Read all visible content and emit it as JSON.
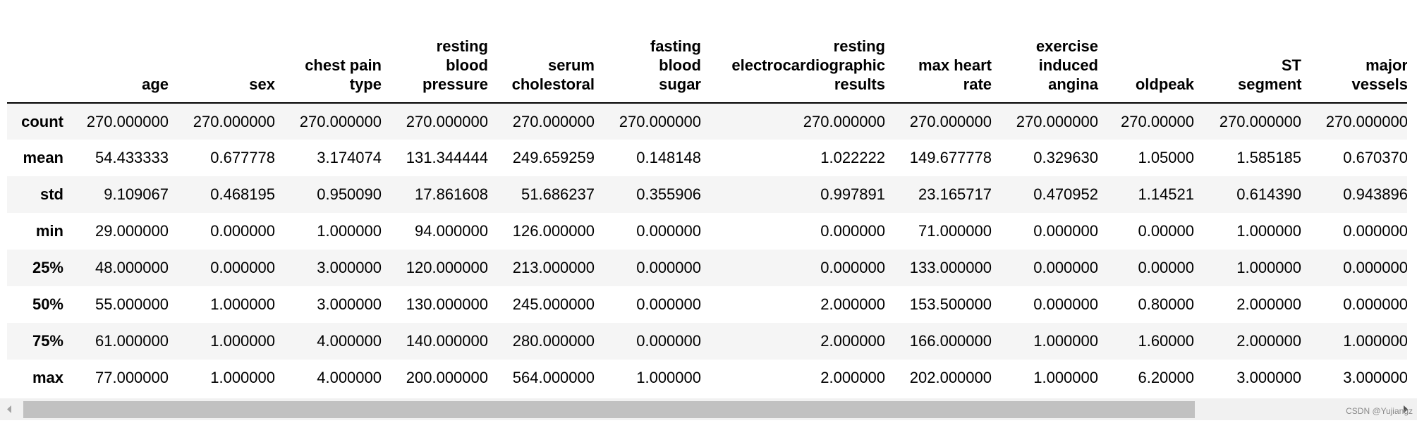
{
  "table": {
    "columns": [
      "age",
      "sex",
      "chest pain type",
      "resting blood pressure",
      "serum cholestoral",
      "fasting blood sugar",
      "resting electrocardiographic results",
      "max heart rate",
      "exercise induced angina",
      "oldpeak",
      "ST segment",
      "major vessels"
    ],
    "rows": [
      {
        "label": "count",
        "values": [
          "270.000000",
          "270.000000",
          "270.000000",
          "270.000000",
          "270.000000",
          "270.000000",
          "270.000000",
          "270.000000",
          "270.000000",
          "270.00000",
          "270.000000",
          "270.000000"
        ]
      },
      {
        "label": "mean",
        "values": [
          "54.433333",
          "0.677778",
          "3.174074",
          "131.344444",
          "249.659259",
          "0.148148",
          "1.022222",
          "149.677778",
          "0.329630",
          "1.05000",
          "1.585185",
          "0.670370"
        ]
      },
      {
        "label": "std",
        "values": [
          "9.109067",
          "0.468195",
          "0.950090",
          "17.861608",
          "51.686237",
          "0.355906",
          "0.997891",
          "23.165717",
          "0.470952",
          "1.14521",
          "0.614390",
          "0.943896"
        ]
      },
      {
        "label": "min",
        "values": [
          "29.000000",
          "0.000000",
          "1.000000",
          "94.000000",
          "126.000000",
          "0.000000",
          "0.000000",
          "71.000000",
          "0.000000",
          "0.00000",
          "1.000000",
          "0.000000"
        ]
      },
      {
        "label": "25%",
        "values": [
          "48.000000",
          "0.000000",
          "3.000000",
          "120.000000",
          "213.000000",
          "0.000000",
          "0.000000",
          "133.000000",
          "0.000000",
          "0.00000",
          "1.000000",
          "0.000000"
        ]
      },
      {
        "label": "50%",
        "values": [
          "55.000000",
          "1.000000",
          "3.000000",
          "130.000000",
          "245.000000",
          "0.000000",
          "2.000000",
          "153.500000",
          "0.000000",
          "0.80000",
          "2.000000",
          "0.000000"
        ]
      },
      {
        "label": "75%",
        "values": [
          "61.000000",
          "1.000000",
          "4.000000",
          "140.000000",
          "280.000000",
          "0.000000",
          "2.000000",
          "166.000000",
          "1.000000",
          "1.60000",
          "2.000000",
          "1.000000"
        ]
      },
      {
        "label": "max",
        "values": [
          "77.000000",
          "1.000000",
          "4.000000",
          "200.000000",
          "564.000000",
          "1.000000",
          "2.000000",
          "202.000000",
          "1.000000",
          "6.20000",
          "3.000000",
          "3.000000"
        ]
      }
    ]
  },
  "watermark": "CSDN @Yujiangz"
}
